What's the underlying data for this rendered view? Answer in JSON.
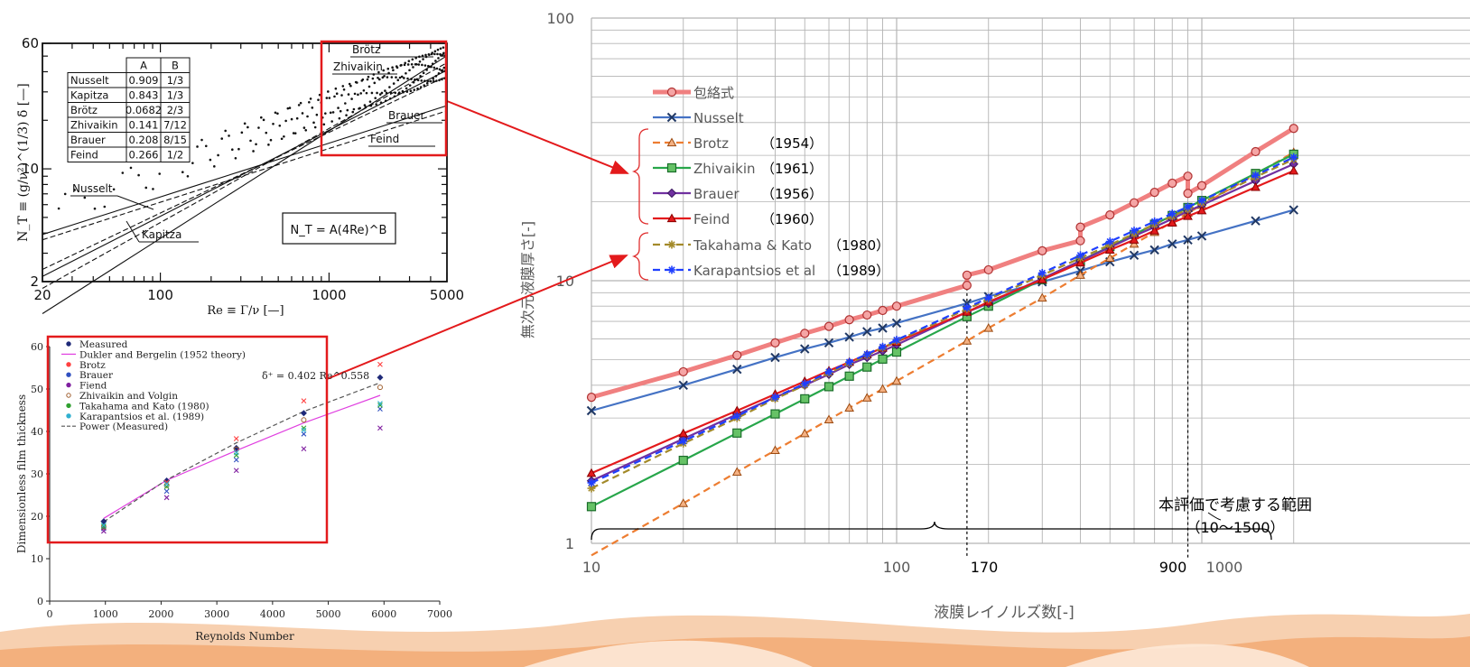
{
  "main": {
    "bracket_label": "本評価で考慮する範囲",
    "bracket_sublabel": "（10〜1500）",
    "vline_labels": [
      "170",
      "900"
    ],
    "colors": {
      "grid": "#b3b3b3",
      "bracket": "#e03030",
      "highlight_box": "#e31a1c",
      "arrow": "#e31a1c"
    }
  },
  "chart_data": [
    {
      "type": "line",
      "title": "",
      "xlabel": "液膜レイノルズ数[-]",
      "ylabel": "無次元液膜厚さ[-]",
      "xscale": "log",
      "yscale": "log",
      "xlim": [
        10,
        2000
      ],
      "ylim": [
        1,
        100
      ],
      "xticks": [
        "10",
        "100",
        "1000"
      ],
      "yticks": [
        "1",
        "10",
        "100"
      ],
      "grid": true,
      "legend_position": "left-middle",
      "series": [
        {
          "name": "包絡式",
          "color": "#f08080",
          "marker": "circle",
          "style": "solid-thick",
          "x": [
            10,
            20,
            30,
            40,
            50,
            60,
            70,
            80,
            90,
            100,
            170,
            170,
            200,
            300,
            400,
            400,
            500,
            600,
            700,
            800,
            900,
            900,
            1000,
            1500,
            2000
          ],
          "y": [
            3.6,
            4.5,
            5.2,
            5.8,
            6.3,
            6.7,
            7.1,
            7.4,
            7.7,
            8.0,
            9.6,
            10.5,
            11.0,
            13.0,
            14.2,
            16.0,
            17.8,
            19.8,
            21.7,
            23.5,
            25.0,
            21.5,
            23.0,
            31.0,
            38.0
          ]
        },
        {
          "name": "Nusselt",
          "color": "#4472c4",
          "marker": "x",
          "style": "solid",
          "x": [
            10,
            20,
            30,
            40,
            50,
            60,
            70,
            80,
            90,
            100,
            170,
            200,
            300,
            400,
            500,
            600,
            700,
            800,
            900,
            1000,
            1500,
            2000
          ],
          "y": [
            3.2,
            4.0,
            4.6,
            5.1,
            5.5,
            5.8,
            6.1,
            6.4,
            6.6,
            6.9,
            8.2,
            8.7,
            9.9,
            10.9,
            11.8,
            12.5,
            13.1,
            13.8,
            14.3,
            14.8,
            16.9,
            18.6
          ]
        },
        {
          "name": "Brotz",
          "year": "（1954）",
          "color": "#ed7d31",
          "marker": "triangle",
          "style": "dashed",
          "x": [
            10,
            20,
            30,
            40,
            50,
            60,
            70,
            80,
            90,
            100,
            170,
            200,
            300,
            400,
            500,
            600,
            700,
            800,
            900,
            1000,
            1500,
            2000
          ],
          "y": [
            0.9,
            1.42,
            1.87,
            2.26,
            2.62,
            2.96,
            3.28,
            3.58,
            3.87,
            4.15,
            5.9,
            6.6,
            8.6,
            10.5,
            12.2,
            13.8,
            15.3,
            16.7,
            18.1,
            19.4,
            25.4,
            30.8
          ]
        },
        {
          "name": "Zhivaikin",
          "year": "（1961）",
          "color": "#27a64a",
          "marker": "square",
          "style": "solid",
          "x": [
            10,
            20,
            30,
            40,
            50,
            60,
            70,
            80,
            90,
            100,
            170,
            200,
            300,
            400,
            500,
            600,
            700,
            800,
            900,
            1000,
            1500,
            2000
          ],
          "y": [
            1.38,
            2.07,
            2.63,
            3.11,
            3.55,
            3.95,
            4.33,
            4.69,
            5.03,
            5.35,
            7.3,
            8.0,
            10.1,
            11.9,
            13.5,
            15.0,
            16.4,
            17.7,
            19.0,
            20.2,
            25.6,
            30.3
          ]
        },
        {
          "name": "Brauer",
          "year": "（1956）",
          "color": "#7030a0",
          "marker": "diamond",
          "style": "solid",
          "x": [
            10,
            20,
            30,
            40,
            50,
            60,
            70,
            80,
            90,
            100,
            170,
            200,
            300,
            400,
            500,
            600,
            700,
            800,
            900,
            1000,
            1500,
            2000
          ],
          "y": [
            1.73,
            2.5,
            3.1,
            3.6,
            4.0,
            4.4,
            4.8,
            5.1,
            5.4,
            5.7,
            7.6,
            8.2,
            10.2,
            11.9,
            13.4,
            14.8,
            16.0,
            17.2,
            18.4,
            19.4,
            24.0,
            27.8
          ]
        },
        {
          "name": "Feind",
          "year": "（1960）",
          "color": "#e31a1c",
          "marker": "triangle",
          "style": "solid",
          "x": [
            10,
            20,
            30,
            40,
            50,
            60,
            70,
            80,
            90,
            100,
            170,
            200,
            300,
            400,
            500,
            600,
            700,
            800,
            900,
            1000,
            1500,
            2000
          ],
          "y": [
            1.85,
            2.62,
            3.2,
            3.7,
            4.14,
            4.54,
            4.9,
            5.24,
            5.55,
            5.85,
            7.6,
            8.3,
            10.1,
            11.7,
            13.1,
            14.3,
            15.5,
            16.6,
            17.6,
            18.5,
            22.7,
            26.2
          ]
        },
        {
          "name": "Takahama & Kato",
          "year": "（1980）",
          "color": "#a38a2a",
          "marker": "asterisk",
          "style": "dashed",
          "x": [
            10,
            20,
            30,
            40,
            50,
            60,
            70,
            80,
            90,
            100,
            170,
            200,
            300,
            400,
            500,
            600,
            700,
            800,
            900,
            1000,
            1500,
            2000
          ],
          "y": [
            1.62,
            2.4,
            3.0,
            3.55,
            4.0,
            4.45,
            4.85,
            5.2,
            5.55,
            5.9,
            7.8,
            8.5,
            10.5,
            12.2,
            13.7,
            15.1,
            16.4,
            17.6,
            18.7,
            19.8,
            24.8,
            29.0
          ]
        },
        {
          "name": "Karapantsios et al",
          "year": "（1989）",
          "color": "#1f3fff",
          "marker": "asterisk",
          "style": "dashed",
          "x": [
            10,
            20,
            30,
            40,
            50,
            60,
            70,
            80,
            90,
            100,
            170,
            200,
            300,
            400,
            500,
            600,
            700,
            800,
            900,
            1000,
            1500,
            2000
          ],
          "y": [
            1.7,
            2.45,
            3.05,
            3.6,
            4.05,
            4.5,
            4.9,
            5.25,
            5.6,
            5.95,
            7.9,
            8.6,
            10.7,
            12.5,
            14.1,
            15.5,
            16.8,
            18.0,
            19.1,
            20.2,
            25.2,
            29.5
          ]
        }
      ]
    },
    {
      "type": "scatter",
      "title": "",
      "xlabel": "Re ≡ Γ/ν [—]",
      "ylabel": "N_T ≡ (g/ν²)^(1/3) δ̄ [—]",
      "xscale": "log",
      "yscale": "log",
      "xlim": [
        20,
        5000
      ],
      "ylim": [
        2,
        60
      ],
      "xticks": [
        "20",
        "100",
        "1000",
        "5000"
      ],
      "yticks": [
        "2",
        "10",
        "60"
      ],
      "formula": "N_T = A(4Re)^B",
      "table": {
        "headers": [
          "",
          "A",
          "B"
        ],
        "rows": [
          [
            "Nusselt",
            "0.909",
            "1/3"
          ],
          [
            "Kapitza",
            "0.843",
            "1/3"
          ],
          [
            "Brötz",
            "0.0682",
            "2/3"
          ],
          [
            "Zhivaikin",
            "0.141",
            "7/12"
          ],
          [
            "Brauer",
            "0.208",
            "8/15"
          ],
          [
            "Feind",
            "0.266",
            "1/2"
          ]
        ]
      },
      "curve_labels": [
        "Nusselt",
        "Kapitza",
        "Brötz",
        "Zhivaikin",
        "Brauer",
        "Feind"
      ],
      "series": [
        {
          "name": "Nusselt",
          "A": 0.909,
          "B": 0.3333
        },
        {
          "name": "Kapitza",
          "A": 0.843,
          "B": 0.3333
        },
        {
          "name": "Brötz",
          "A": 0.0682,
          "B": 0.6667
        },
        {
          "name": "Zhivaikin",
          "A": 0.141,
          "B": 0.5833
        },
        {
          "name": "Brauer",
          "A": 0.208,
          "B": 0.5333
        },
        {
          "name": "Feind",
          "A": 0.266,
          "B": 0.5
        }
      ]
    },
    {
      "type": "scatter",
      "title": "",
      "xlabel": "Reynolds Number",
      "ylabel": "Dimensionless film thickness",
      "xlim": [
        0,
        7000
      ],
      "ylim": [
        0,
        60
      ],
      "xticks": [
        "0",
        "1000",
        "2000",
        "3000",
        "4000",
        "5000",
        "6000",
        "7000"
      ],
      "yticks": [
        "0",
        "10",
        "20",
        "30",
        "40",
        "50",
        "60"
      ],
      "annotation": "δ̄⁺ = 0.402 Re^0.558",
      "legend_position": "top-left",
      "legend": [
        "Measured",
        "Dukler and Bergelin (1952 theory)",
        "Brotz",
        "Brauer",
        "Fiend",
        "Zhivaikin and Volgin",
        "Takahama and Kato (1980)",
        "Karapantsios et al. (1989)",
        "Power (Measured)"
      ],
      "x": [
        970,
        2100,
        3350,
        4560,
        5930
      ],
      "series": [
        {
          "name": "Measured",
          "color": "#1f2a78",
          "values": [
            18.8,
            28.4,
            36.1,
            44.3,
            52.7
          ]
        },
        {
          "name": "Brotz",
          "color": "#ff4040",
          "values": [
            17.3,
            28.0,
            38.3,
            47.2,
            55.8
          ]
        },
        {
          "name": "Brauer",
          "color": "#3050c0",
          "values": [
            17.1,
            25.9,
            33.3,
            39.4,
            45.3
          ]
        },
        {
          "name": "Fiend",
          "color": "#8020a0",
          "values": [
            16.5,
            24.4,
            30.8,
            35.9,
            40.8
          ]
        },
        {
          "name": "Zhivaikin and Volgin",
          "color": "#a06030",
          "values": [
            17.5,
            27.3,
            35.8,
            42.7,
            50.4
          ]
        },
        {
          "name": "Takahama and Kato (1980)",
          "color": "#30a030",
          "values": [
            17.6,
            27.0,
            34.4,
            40.8,
            46.2
          ]
        },
        {
          "name": "Karapantsios et al. (1989)",
          "color": "#30b0d0",
          "values": [
            17.9,
            27.6,
            35.0,
            40.3,
            46.6
          ]
        },
        {
          "name": "Dukler and Bergelin (1952 theory)",
          "color": "#e040e0",
          "line_x": [
            970,
            2100,
            3350,
            4560,
            5930
          ],
          "line_y": [
            19.5,
            28.5,
            35.5,
            42.0,
            48.5
          ]
        },
        {
          "name": "Power (Measured)",
          "color": "#555555",
          "line_x": [
            970,
            2100,
            3350,
            4560,
            5930
          ],
          "line_y": [
            18.7,
            28.6,
            37.3,
            44.7,
            51.5
          ]
        }
      ]
    }
  ]
}
